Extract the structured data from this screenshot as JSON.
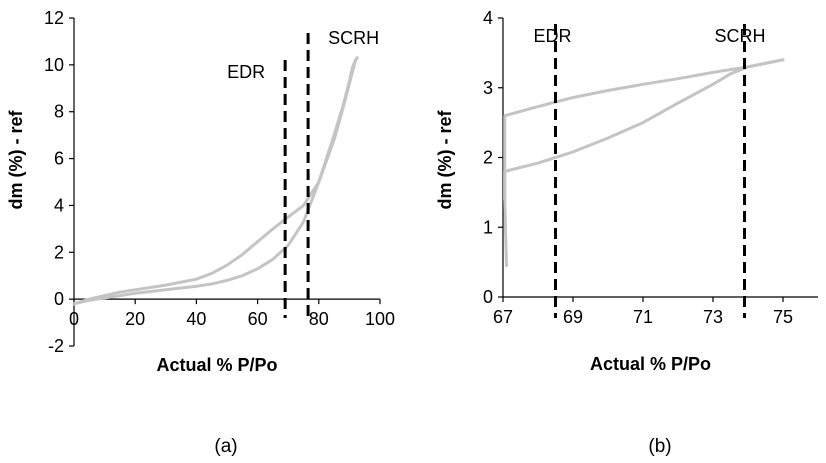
{
  "chart_data": [
    {
      "type": "line",
      "panel_label": "(a)",
      "xlabel": "Actual % P/Po",
      "ylabel": "dm (%) - ref",
      "xlim": [
        0,
        100
      ],
      "ylim": [
        -2,
        12
      ],
      "xticks": [
        0,
        20,
        40,
        60,
        80,
        100
      ],
      "yticks": [
        -2,
        0,
        2,
        4,
        6,
        8,
        10,
        12
      ],
      "grid": false,
      "legend": "none",
      "series_color": "#c4c4c4",
      "series": [
        {
          "x": [
            0,
            5,
            10,
            15,
            20,
            30,
            40,
            45,
            50,
            55,
            60,
            65,
            70,
            75,
            80,
            85,
            88,
            90,
            91,
            92,
            92.5
          ],
          "y": [
            -0.2,
            -0.05,
            0.05,
            0.15,
            0.25,
            0.4,
            0.55,
            0.65,
            0.8,
            1.0,
            1.3,
            1.7,
            2.3,
            3.3,
            5.0,
            7.0,
            8.3,
            9.3,
            9.9,
            10.2,
            10.3
          ]
        },
        {
          "x": [
            0,
            5,
            10,
            15,
            20,
            30,
            40,
            45,
            50,
            55,
            60,
            65,
            70,
            75,
            80,
            85,
            88,
            90,
            92,
            92.5
          ],
          "y": [
            -0.2,
            0.0,
            0.15,
            0.3,
            0.4,
            0.6,
            0.85,
            1.1,
            1.45,
            1.9,
            2.45,
            3.0,
            3.5,
            4.0,
            5.0,
            6.8,
            8.2,
            9.2,
            10.2,
            10.3
          ]
        }
      ],
      "vlines": [
        {
          "x": 69,
          "label": "EDR"
        },
        {
          "x": 76.5,
          "label": "SCRH"
        }
      ]
    },
    {
      "type": "line",
      "panel_label": "(b)",
      "xlabel": "Actual % P/Po",
      "ylabel": "dm (%) - ref",
      "xlim": [
        67,
        76
      ],
      "ylim": [
        0,
        4
      ],
      "xticks": [
        67,
        69,
        71,
        73,
        75
      ],
      "yticks": [
        0,
        1,
        2,
        3,
        4
      ],
      "grid": false,
      "legend": "none",
      "series_color": "#c4c4c4",
      "series": [
        {
          "x": [
            67.05,
            67.05,
            68,
            69,
            70,
            71,
            72,
            73,
            74,
            75
          ],
          "y": [
            1.4,
            2.6,
            2.73,
            2.86,
            2.96,
            3.05,
            3.13,
            3.22,
            3.3,
            3.4
          ]
        },
        {
          "x": [
            67.1,
            67.05,
            67.05,
            68,
            69,
            70,
            71,
            72,
            73,
            73.5,
            74,
            75
          ],
          "y": [
            0.45,
            1.4,
            1.8,
            1.92,
            2.08,
            2.28,
            2.5,
            2.78,
            3.05,
            3.2,
            3.3,
            3.4
          ]
        }
      ],
      "vlines": [
        {
          "x": 68.5,
          "label": "EDR"
        },
        {
          "x": 73.9,
          "label": "SCRH"
        }
      ]
    }
  ]
}
